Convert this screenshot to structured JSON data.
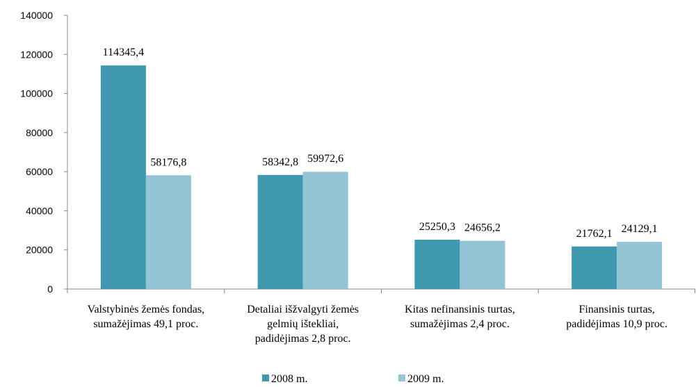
{
  "chart_data": {
    "type": "bar",
    "categories": [
      [
        "Valstybinės žemės fondas,",
        "sumažėjimas 49,1 proc."
      ],
      [
        "Detaliai išžvalgyti žemės",
        "gelmių ištekliai,",
        "padidėjimas 2,8 proc."
      ],
      [
        "Kitas nefinansinis turtas,",
        "sumažėjimas 2,4 proc."
      ],
      [
        "Finansinis turtas,",
        "padidėjimas 10,9 proc."
      ]
    ],
    "series": [
      {
        "name": "2008 m.",
        "color": "#3f97b0",
        "values": [
          114345.4,
          58342.8,
          25250.3,
          21762.1
        ],
        "value_labels": [
          "114345,4",
          "58342,8",
          "25250,3",
          "21762,1"
        ]
      },
      {
        "name": "2009 m.",
        "color": "#93c4d5",
        "values": [
          58176.8,
          59972.6,
          24656.2,
          24129.1
        ],
        "value_labels": [
          "58176,8",
          "59972,6",
          "24656,2",
          "24129,1"
        ]
      }
    ],
    "ylim": [
      0,
      140000
    ],
    "yticks": [
      0,
      20000,
      40000,
      60000,
      80000,
      100000,
      120000,
      140000
    ],
    "legend": "bottom"
  }
}
